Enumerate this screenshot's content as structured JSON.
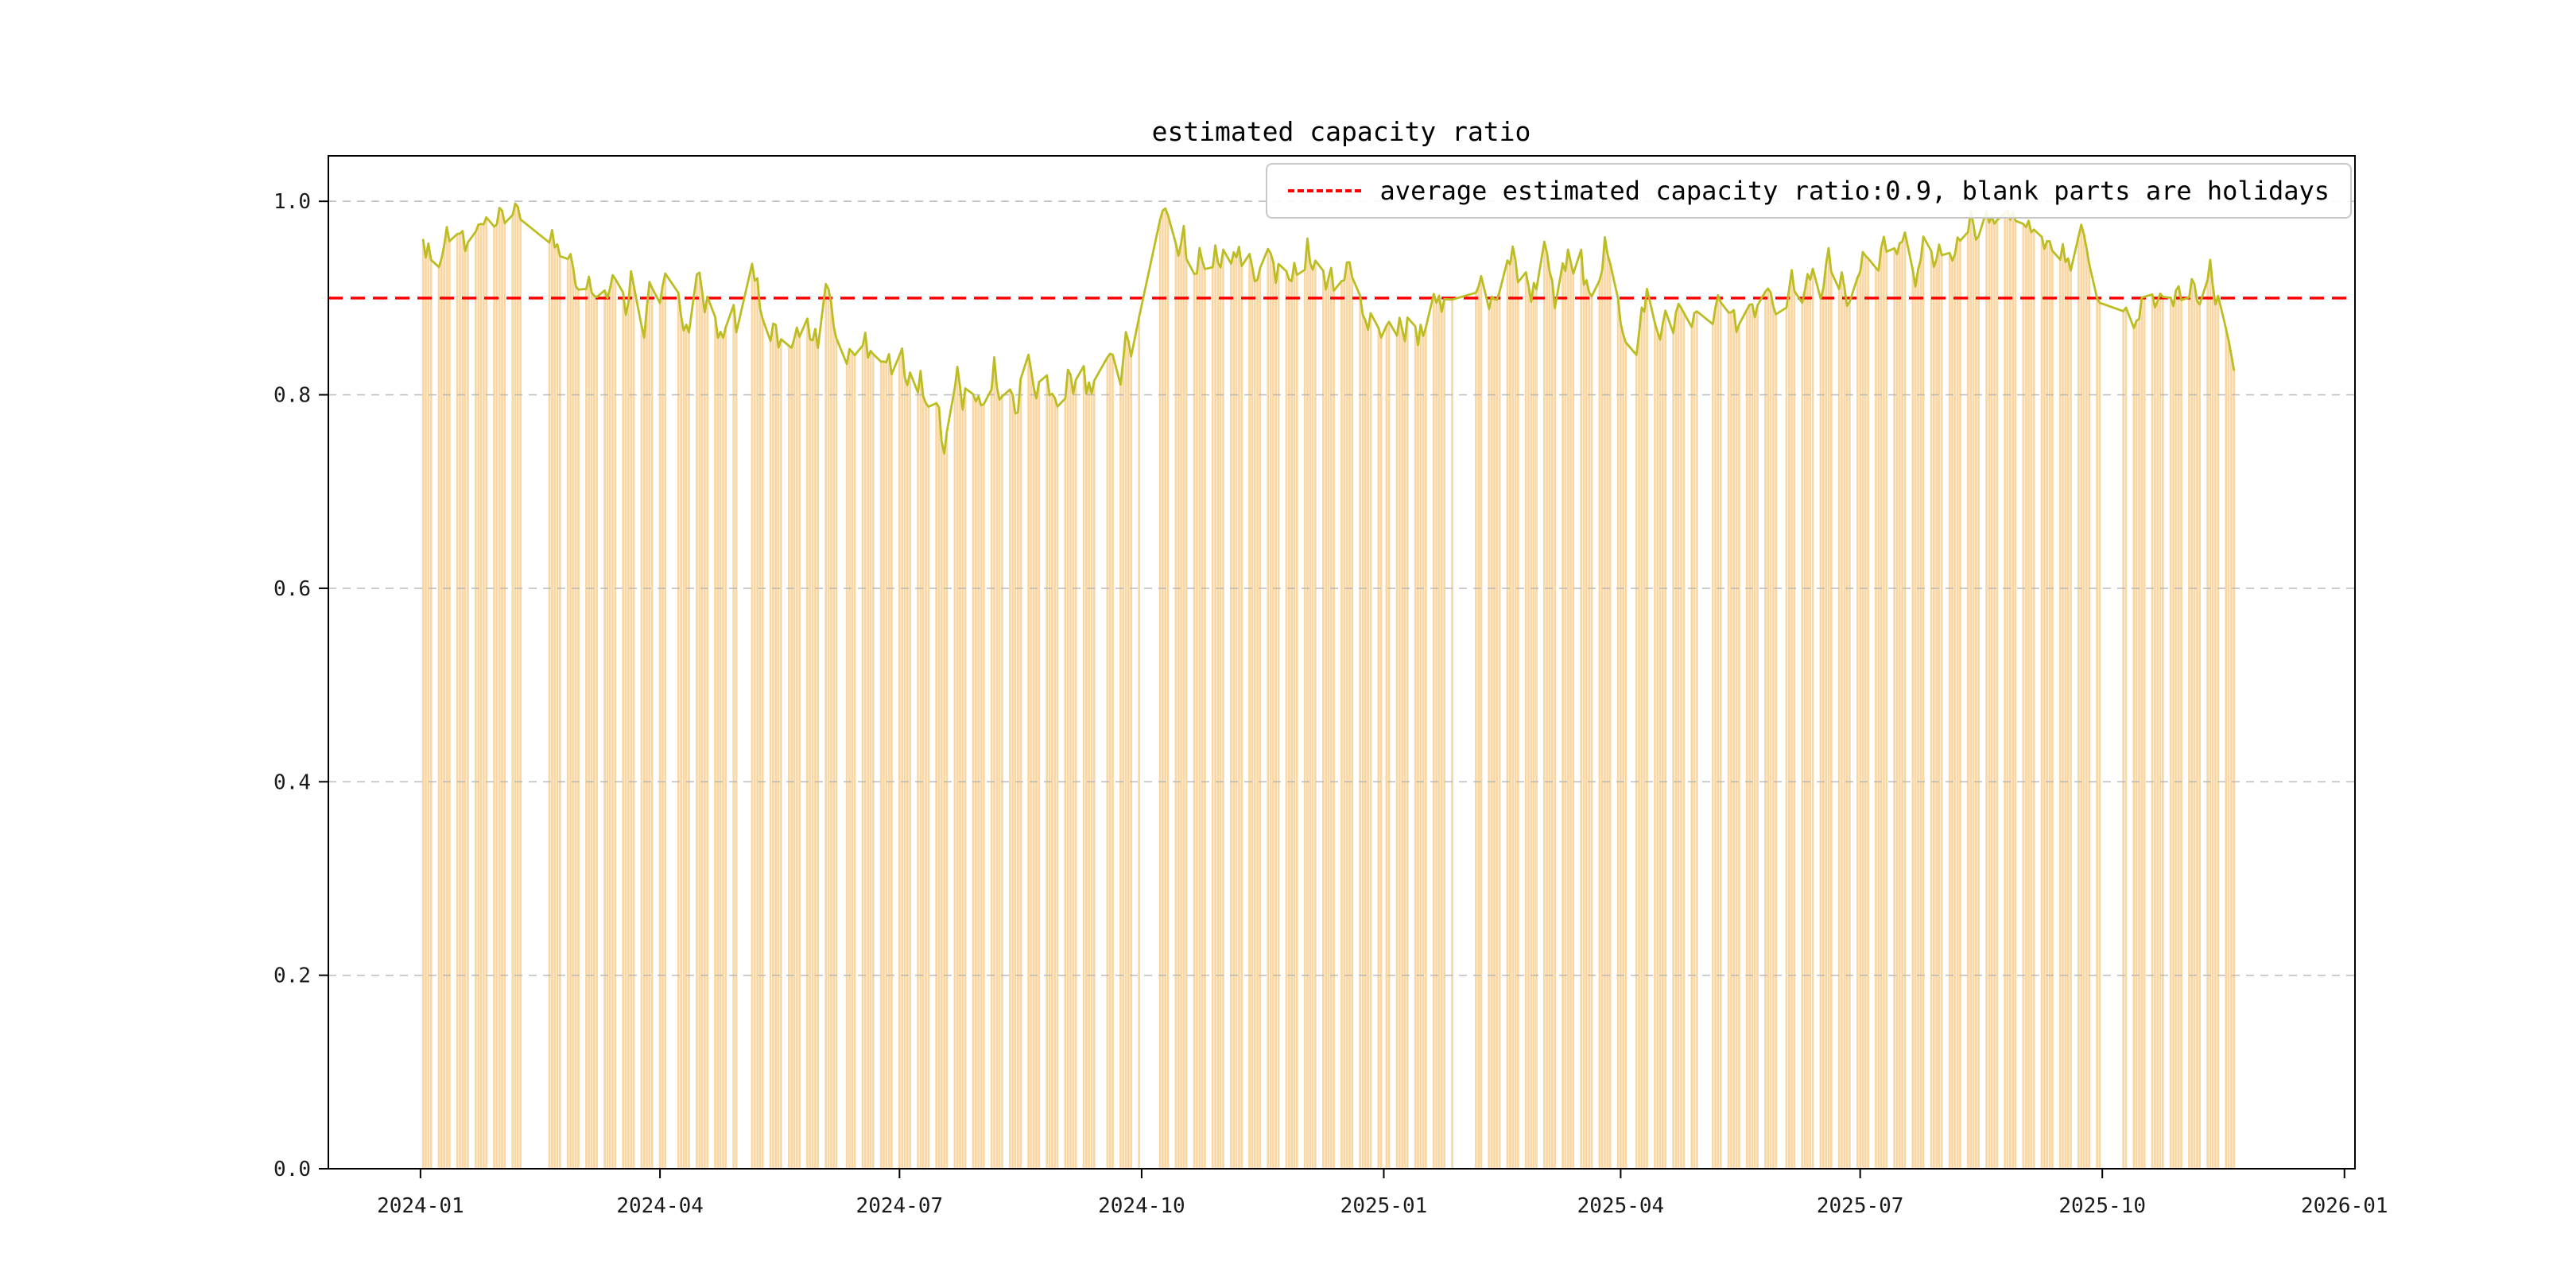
{
  "chart_data": {
    "type": "bar+line",
    "title": "estimated capacity ratio",
    "xlabel": "",
    "ylabel": "",
    "legend": [
      "average estimated capacity ratio:0.9, blank parts are holidays"
    ],
    "legend_position": "upper right",
    "average_line": {
      "value": 0.9,
      "color": "#ff0000",
      "style": "dashed"
    },
    "ylim": [
      0,
      1.047
    ],
    "yticks": [
      "0.0",
      "0.2",
      "0.4",
      "0.6",
      "0.8",
      "1.0"
    ],
    "ytick_values": [
      0,
      0.2,
      0.4,
      0.6,
      0.8,
      1.0
    ],
    "xticks": [
      "2024-01",
      "2024-04",
      "2024-07",
      "2024-10",
      "2025-01",
      "2025-04",
      "2025-07",
      "2025-10",
      "2026-01"
    ],
    "xtick_days": [
      0,
      91,
      182,
      274,
      366,
      456,
      547,
      639,
      731
    ],
    "x_axis_range_days": [
      -35,
      735
    ],
    "origin_date": "2024-01-01",
    "data_start_day": 1,
    "data_end_day": 689,
    "grid": true,
    "colors": {
      "bars": "#fad7a2",
      "line": "#bcbd22",
      "grid": "#b0b0b0",
      "axis": "#000000",
      "text": "#1a1a1a"
    },
    "holidays": [
      [
        "2024-01-01",
        "2024-01-01"
      ],
      [
        "2024-02-09",
        "2024-02-17"
      ],
      [
        "2024-04-04",
        "2024-04-06"
      ],
      [
        "2024-05-01",
        "2024-05-05"
      ],
      [
        "2024-06-08",
        "2024-06-10"
      ],
      [
        "2024-09-15",
        "2024-09-17"
      ],
      [
        "2024-10-01",
        "2024-10-07"
      ],
      [
        "2025-01-01",
        "2025-01-01"
      ],
      [
        "2025-01-28",
        "2025-02-04"
      ],
      [
        "2025-04-04",
        "2025-04-06"
      ],
      [
        "2025-05-01",
        "2025-05-05"
      ],
      [
        "2025-05-31",
        "2025-06-02"
      ],
      [
        "2025-10-01",
        "2025-10-08"
      ]
    ],
    "jitter_amplitude": 0.012,
    "series_control_points": [
      [
        1,
        0.95
      ],
      [
        3,
        0.955
      ],
      [
        5,
        0.93
      ],
      [
        8,
        0.945
      ],
      [
        10,
        0.962
      ],
      [
        12,
        0.94
      ],
      [
        15,
        0.968
      ],
      [
        17,
        0.95
      ],
      [
        19,
        0.958
      ],
      [
        22,
        0.972
      ],
      [
        24,
        0.985
      ],
      [
        26,
        0.99
      ],
      [
        29,
        0.978
      ],
      [
        31,
        0.985
      ],
      [
        33,
        0.98
      ],
      [
        36,
        0.986
      ],
      [
        38,
        0.982
      ],
      [
        48,
        0.958
      ],
      [
        50,
        0.975
      ],
      [
        52,
        0.948
      ],
      [
        55,
        0.93
      ],
      [
        57,
        0.952
      ],
      [
        59,
        0.92
      ],
      [
        62,
        0.91
      ],
      [
        64,
        0.932
      ],
      [
        66,
        0.9
      ],
      [
        69,
        0.922
      ],
      [
        71,
        0.9
      ],
      [
        73,
        0.935
      ],
      [
        76,
        0.912
      ],
      [
        78,
        0.89
      ],
      [
        80,
        0.922
      ],
      [
        83,
        0.9
      ],
      [
        85,
        0.862
      ],
      [
        87,
        0.92
      ],
      [
        90,
        0.895
      ],
      [
        92,
        0.912
      ],
      [
        97,
        0.95
      ],
      [
        99,
        0.882
      ],
      [
        101,
        0.862
      ],
      [
        104,
        0.9
      ],
      [
        106,
        0.93
      ],
      [
        108,
        0.88
      ],
      [
        111,
        0.912
      ],
      [
        113,
        0.87
      ],
      [
        115,
        0.86
      ],
      [
        118,
        0.892
      ],
      [
        120,
        0.87
      ],
      [
        126,
        0.94
      ],
      [
        128,
        0.91
      ],
      [
        130,
        0.88
      ],
      [
        132,
        0.862
      ],
      [
        134,
        0.872
      ],
      [
        137,
        0.85
      ],
      [
        139,
        0.862
      ],
      [
        141,
        0.842
      ],
      [
        144,
        0.87
      ],
      [
        146,
        0.882
      ],
      [
        148,
        0.855
      ],
      [
        151,
        0.86
      ],
      [
        153,
        0.928
      ],
      [
        155,
        0.9
      ],
      [
        157,
        0.87
      ],
      [
        162,
        0.842
      ],
      [
        164,
        0.852
      ],
      [
        166,
        0.832
      ],
      [
        169,
        0.86
      ],
      [
        171,
        0.84
      ],
      [
        174,
        0.82
      ],
      [
        176,
        0.842
      ],
      [
        179,
        0.825
      ],
      [
        181,
        0.832
      ],
      [
        183,
        0.84
      ],
      [
        185,
        0.82
      ],
      [
        188,
        0.8
      ],
      [
        190,
        0.822
      ],
      [
        192,
        0.79
      ],
      [
        195,
        0.812
      ],
      [
        197,
        0.78
      ],
      [
        199,
        0.74
      ],
      [
        202,
        0.8
      ],
      [
        204,
        0.82
      ],
      [
        206,
        0.79
      ],
      [
        209,
        0.812
      ],
      [
        211,
        0.8
      ],
      [
        213,
        0.782
      ],
      [
        216,
        0.8
      ],
      [
        218,
        0.83
      ],
      [
        220,
        0.792
      ],
      [
        223,
        0.812
      ],
      [
        225,
        0.8
      ],
      [
        227,
        0.782
      ],
      [
        230,
        0.86
      ],
      [
        232,
        0.82
      ],
      [
        234,
        0.8
      ],
      [
        237,
        0.832
      ],
      [
        239,
        0.802
      ],
      [
        241,
        0.792
      ],
      [
        244,
        0.78
      ],
      [
        246,
        0.82
      ],
      [
        248,
        0.8
      ],
      [
        251,
        0.84
      ],
      [
        253,
        0.812
      ],
      [
        255,
        0.79
      ],
      [
        257,
        0.822
      ],
      [
        261,
        0.85
      ],
      [
        263,
        0.83
      ],
      [
        265,
        0.802
      ],
      [
        268,
        0.862
      ],
      [
        270,
        0.842
      ],
      [
        272,
        0.872
      ],
      [
        281,
        0.99
      ],
      [
        283,
        0.998
      ],
      [
        285,
        0.98
      ],
      [
        288,
        0.95
      ],
      [
        290,
        0.97
      ],
      [
        292,
        0.91
      ],
      [
        295,
        0.93
      ],
      [
        297,
        0.95
      ],
      [
        299,
        0.92
      ],
      [
        302,
        0.945
      ],
      [
        304,
        0.93
      ],
      [
        306,
        0.96
      ],
      [
        308,
        0.93
      ],
      [
        311,
        0.95
      ],
      [
        313,
        0.92
      ],
      [
        316,
        0.942
      ],
      [
        318,
        0.91
      ],
      [
        320,
        0.932
      ],
      [
        323,
        0.95
      ],
      [
        325,
        0.92
      ],
      [
        327,
        0.94
      ],
      [
        330,
        0.91
      ],
      [
        332,
        0.93
      ],
      [
        334,
        0.9
      ],
      [
        337,
        0.95
      ],
      [
        339,
        0.92
      ],
      [
        341,
        0.94
      ],
      [
        344,
        0.91
      ],
      [
        346,
        0.93
      ],
      [
        348,
        0.9
      ],
      [
        351,
        0.92
      ],
      [
        353,
        0.94
      ],
      [
        355,
        0.91
      ],
      [
        358,
        0.89
      ],
      [
        360,
        0.87
      ],
      [
        362,
        0.882
      ],
      [
        364,
        0.862
      ],
      [
        367,
        0.88
      ],
      [
        369,
        0.852
      ],
      [
        372,
        0.87
      ],
      [
        374,
        0.86
      ],
      [
        376,
        0.88
      ],
      [
        379,
        0.852
      ],
      [
        381,
        0.872
      ],
      [
        383,
        0.89
      ],
      [
        386,
        0.9
      ],
      [
        388,
        0.882
      ],
      [
        390,
        0.9
      ],
      [
        392,
        0.905
      ],
      [
        401,
        0.9
      ],
      [
        403,
        0.92
      ],
      [
        406,
        0.9
      ],
      [
        408,
        0.89
      ],
      [
        410,
        0.91
      ],
      [
        413,
        0.93
      ],
      [
        415,
        0.95
      ],
      [
        417,
        0.91
      ],
      [
        420,
        0.93
      ],
      [
        422,
        0.9
      ],
      [
        424,
        0.92
      ],
      [
        427,
        0.95
      ],
      [
        429,
        0.92
      ],
      [
        431,
        0.9
      ],
      [
        434,
        0.93
      ],
      [
        436,
        0.948
      ],
      [
        438,
        0.92
      ],
      [
        441,
        0.94
      ],
      [
        443,
        0.91
      ],
      [
        445,
        0.89
      ],
      [
        448,
        0.92
      ],
      [
        450,
        0.958
      ],
      [
        452,
        0.93
      ],
      [
        455,
        0.9
      ],
      [
        457,
        0.86
      ],
      [
        462,
        0.842
      ],
      [
        464,
        0.88
      ],
      [
        466,
        0.9
      ],
      [
        469,
        0.87
      ],
      [
        471,
        0.85
      ],
      [
        473,
        0.88
      ],
      [
        476,
        0.862
      ],
      [
        478,
        0.9
      ],
      [
        480,
        0.88
      ],
      [
        483,
        0.87
      ],
      [
        485,
        0.88
      ],
      [
        491,
        0.88
      ],
      [
        493,
        0.9
      ],
      [
        495,
        0.87
      ],
      [
        498,
        0.89
      ],
      [
        500,
        0.862
      ],
      [
        502,
        0.88
      ],
      [
        505,
        0.9
      ],
      [
        507,
        0.872
      ],
      [
        509,
        0.89
      ],
      [
        512,
        0.91
      ],
      [
        514,
        0.882
      ],
      [
        519,
        0.9
      ],
      [
        521,
        0.92
      ],
      [
        524,
        0.89
      ],
      [
        526,
        0.91
      ],
      [
        528,
        0.93
      ],
      [
        531,
        0.9
      ],
      [
        533,
        0.92
      ],
      [
        535,
        0.94
      ],
      [
        538,
        0.91
      ],
      [
        540,
        0.93
      ],
      [
        542,
        0.902
      ],
      [
        545,
        0.92
      ],
      [
        547,
        0.93
      ],
      [
        549,
        0.95
      ],
      [
        552,
        0.92
      ],
      [
        554,
        0.94
      ],
      [
        556,
        0.96
      ],
      [
        559,
        0.93
      ],
      [
        561,
        0.95
      ],
      [
        563,
        0.968
      ],
      [
        566,
        0.94
      ],
      [
        568,
        0.92
      ],
      [
        570,
        0.95
      ],
      [
        573,
        0.96
      ],
      [
        575,
        0.932
      ],
      [
        577,
        0.95
      ],
      [
        580,
        0.96
      ],
      [
        582,
        0.94
      ],
      [
        584,
        0.968
      ],
      [
        587,
        0.95
      ],
      [
        589,
        0.978
      ],
      [
        591,
        0.96
      ],
      [
        594,
        0.99
      ],
      [
        596,
        0.97
      ],
      [
        598,
        0.98
      ],
      [
        601,
        0.998
      ],
      [
        603,
        0.98
      ],
      [
        605,
        0.99
      ],
      [
        608,
        0.97
      ],
      [
        610,
        0.98
      ],
      [
        612,
        0.96
      ],
      [
        615,
        0.978
      ],
      [
        617,
        0.95
      ],
      [
        619,
        0.97
      ],
      [
        622,
        0.94
      ],
      [
        624,
        0.96
      ],
      [
        626,
        0.93
      ],
      [
        629,
        0.95
      ],
      [
        631,
        0.968
      ],
      [
        633,
        0.94
      ],
      [
        636,
        0.92
      ],
      [
        638,
        0.9
      ],
      [
        647,
        0.88
      ],
      [
        649,
        0.9
      ],
      [
        652,
        0.87
      ],
      [
        654,
        0.89
      ],
      [
        657,
        0.91
      ],
      [
        659,
        0.88
      ],
      [
        661,
        0.9
      ],
      [
        664,
        0.92
      ],
      [
        666,
        0.89
      ],
      [
        668,
        0.91
      ],
      [
        671,
        0.9
      ],
      [
        673,
        0.92
      ],
      [
        675,
        0.89
      ],
      [
        678,
        0.91
      ],
      [
        680,
        0.928
      ],
      [
        682,
        0.9
      ],
      [
        685,
        0.88
      ],
      [
        687,
        0.86
      ],
      [
        689,
        0.83
      ]
    ]
  }
}
